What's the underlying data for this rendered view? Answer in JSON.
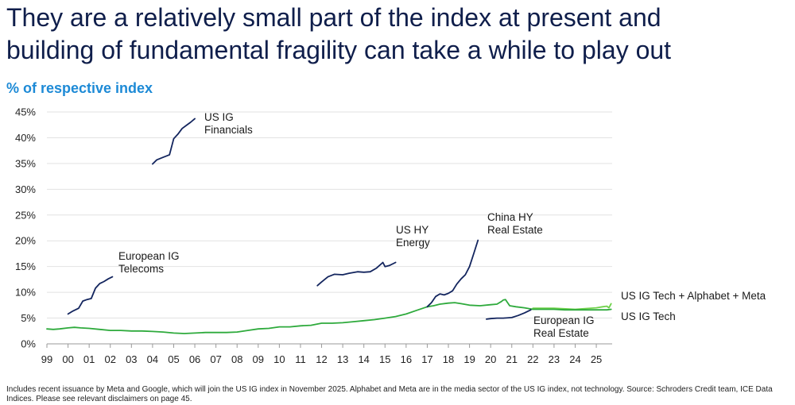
{
  "title_lines": [
    "They are a relatively small part of the index at present and",
    "building of fundamental fragility can take a while to play out"
  ],
  "subtitle": "% of respective index",
  "footnote": "Includes recent issuance by Meta and Google, which will join the US IG index in November 2025. Alphabet and Meta are in the media sector of the US IG index, not technology. Source: Schroders Credit team, ICE Data Indices. Please see relevant disclaimers on page 45.",
  "colors": {
    "navy": "#13255e",
    "green": "#2eaa3c",
    "light_green": "#6fd24a",
    "grid": "#e2e2e2"
  },
  "chart_data": {
    "type": "line",
    "title": "% of respective index",
    "ylabel": "% of respective index",
    "ylim": [
      0,
      45
    ],
    "y_ticks": [
      0,
      5,
      10,
      15,
      20,
      25,
      30,
      35,
      40,
      45
    ],
    "y_tick_labels": [
      "0%",
      "5%",
      "10%",
      "15%",
      "20%",
      "25%",
      "30%",
      "35%",
      "40%",
      "45%"
    ],
    "xlim": [
      1999.0,
      2025.75
    ],
    "x_ticks": [
      1999,
      2000,
      2001,
      2002,
      2003,
      2004,
      2005,
      2006,
      2007,
      2008,
      2009,
      2010,
      2011,
      2012,
      2013,
      2014,
      2015,
      2016,
      2017,
      2018,
      2019,
      2020,
      2021,
      2022,
      2023,
      2024,
      2025
    ],
    "x_tick_labels": [
      "99",
      "00",
      "01",
      "02",
      "03",
      "04",
      "05",
      "06",
      "07",
      "08",
      "09",
      "10",
      "11",
      "12",
      "13",
      "14",
      "15",
      "16",
      "17",
      "18",
      "19",
      "20",
      "21",
      "22",
      "23",
      "24",
      "25"
    ],
    "grid": "horizontal",
    "series": [
      {
        "name": "US IG Tech + Alphabet + Meta",
        "color": "#6fd24a",
        "label_lines": [
          "US IG Tech + Alphabet + Meta"
        ],
        "x": [
          2022.0,
          2023.0,
          2024.0,
          2025.0,
          2025.3,
          2025.5,
          2025.6,
          2025.7
        ],
        "y": [
          6.9,
          6.9,
          6.7,
          7.0,
          7.2,
          7.3,
          7.0,
          7.8
        ]
      },
      {
        "name": "US IG Tech",
        "color": "#2eaa3c",
        "label_lines": [
          "US IG Tech"
        ],
        "x": [
          1999.0,
          1999.3,
          1999.6,
          2000.0,
          2000.3,
          2000.6,
          2001.0,
          2001.5,
          2002.0,
          2002.5,
          2003.0,
          2003.5,
          2004.0,
          2004.5,
          2005.0,
          2005.5,
          2006.0,
          2006.5,
          2007.0,
          2007.5,
          2008.0,
          2008.5,
          2009.0,
          2009.5,
          2010.0,
          2010.5,
          2011.0,
          2011.5,
          2012.0,
          2012.5,
          2013.0,
          2013.5,
          2014.0,
          2014.5,
          2015.0,
          2015.5,
          2016.0,
          2016.5,
          2017.0,
          2017.3,
          2017.6,
          2018.0,
          2018.3,
          2018.6,
          2019.0,
          2019.5,
          2020.0,
          2020.3,
          2020.5,
          2020.6,
          2020.7,
          2020.9,
          2021.2,
          2021.6,
          2022.0,
          2022.5,
          2023.0,
          2023.5,
          2024.0,
          2024.5,
          2025.0,
          2025.5,
          2025.7
        ],
        "y": [
          2.9,
          2.8,
          2.9,
          3.1,
          3.2,
          3.1,
          3.0,
          2.8,
          2.6,
          2.6,
          2.5,
          2.5,
          2.4,
          2.3,
          2.1,
          2.0,
          2.1,
          2.2,
          2.2,
          2.2,
          2.3,
          2.6,
          2.9,
          3.0,
          3.3,
          3.3,
          3.5,
          3.6,
          4.0,
          4.0,
          4.1,
          4.3,
          4.5,
          4.7,
          5.0,
          5.3,
          5.8,
          6.5,
          7.2,
          7.4,
          7.7,
          7.9,
          8.0,
          7.8,
          7.5,
          7.4,
          7.6,
          7.7,
          8.2,
          8.5,
          8.6,
          7.4,
          7.2,
          7.0,
          6.7,
          6.7,
          6.7,
          6.6,
          6.6,
          6.6,
          6.6,
          6.6,
          6.7
        ]
      },
      {
        "name": "European IG Telecoms",
        "color": "#13255e",
        "label_lines": [
          "European IG",
          "Telecoms"
        ],
        "x": [
          2000.0,
          2000.2,
          2000.5,
          2000.7,
          2000.9,
          2001.1,
          2001.3,
          2001.5,
          2001.7,
          2001.9,
          2002.1
        ],
        "y": [
          5.8,
          6.3,
          6.9,
          8.3,
          8.6,
          8.8,
          10.8,
          11.7,
          12.1,
          12.6,
          13.0
        ]
      },
      {
        "name": "US IG Financials",
        "color": "#13255e",
        "label_lines": [
          "US IG",
          "Financials"
        ],
        "x": [
          2004.0,
          2004.2,
          2004.5,
          2004.8,
          2005.0,
          2005.2,
          2005.4,
          2005.6,
          2005.8,
          2006.0
        ],
        "y": [
          34.9,
          35.7,
          36.2,
          36.7,
          39.8,
          40.7,
          41.8,
          42.4,
          43.0,
          43.7
        ]
      },
      {
        "name": "US HY Energy",
        "color": "#13255e",
        "label_lines": [
          "US HY",
          "Energy"
        ],
        "x": [
          2011.8,
          2012.0,
          2012.3,
          2012.6,
          2013.0,
          2013.3,
          2013.7,
          2014.0,
          2014.3,
          2014.6,
          2014.9,
          2015.0,
          2015.2,
          2015.5
        ],
        "y": [
          11.3,
          12.0,
          13.0,
          13.5,
          13.4,
          13.7,
          14.0,
          13.9,
          14.0,
          14.7,
          15.8,
          15.0,
          15.2,
          15.8
        ]
      },
      {
        "name": "China HY Real Estate",
        "color": "#13255e",
        "label_lines": [
          "China HY",
          "Real Estate"
        ],
        "x": [
          2017.0,
          2017.2,
          2017.4,
          2017.6,
          2017.8,
          2018.0,
          2018.2,
          2018.4,
          2018.6,
          2018.8,
          2019.0,
          2019.2,
          2019.4
        ],
        "y": [
          7.2,
          8.0,
          9.2,
          9.7,
          9.5,
          9.8,
          10.3,
          11.6,
          12.6,
          13.4,
          15.0,
          17.5,
          20.1
        ]
      },
      {
        "name": "European IG Real Estate",
        "color": "#13255e",
        "label_lines": [
          "European IG",
          "Real Estate"
        ],
        "x": [
          2019.8,
          2020.0,
          2020.3,
          2020.6,
          2021.0,
          2021.3,
          2021.6,
          2021.9
        ],
        "y": [
          4.8,
          4.9,
          5.0,
          5.0,
          5.1,
          5.5,
          6.0,
          6.6
        ]
      }
    ]
  }
}
